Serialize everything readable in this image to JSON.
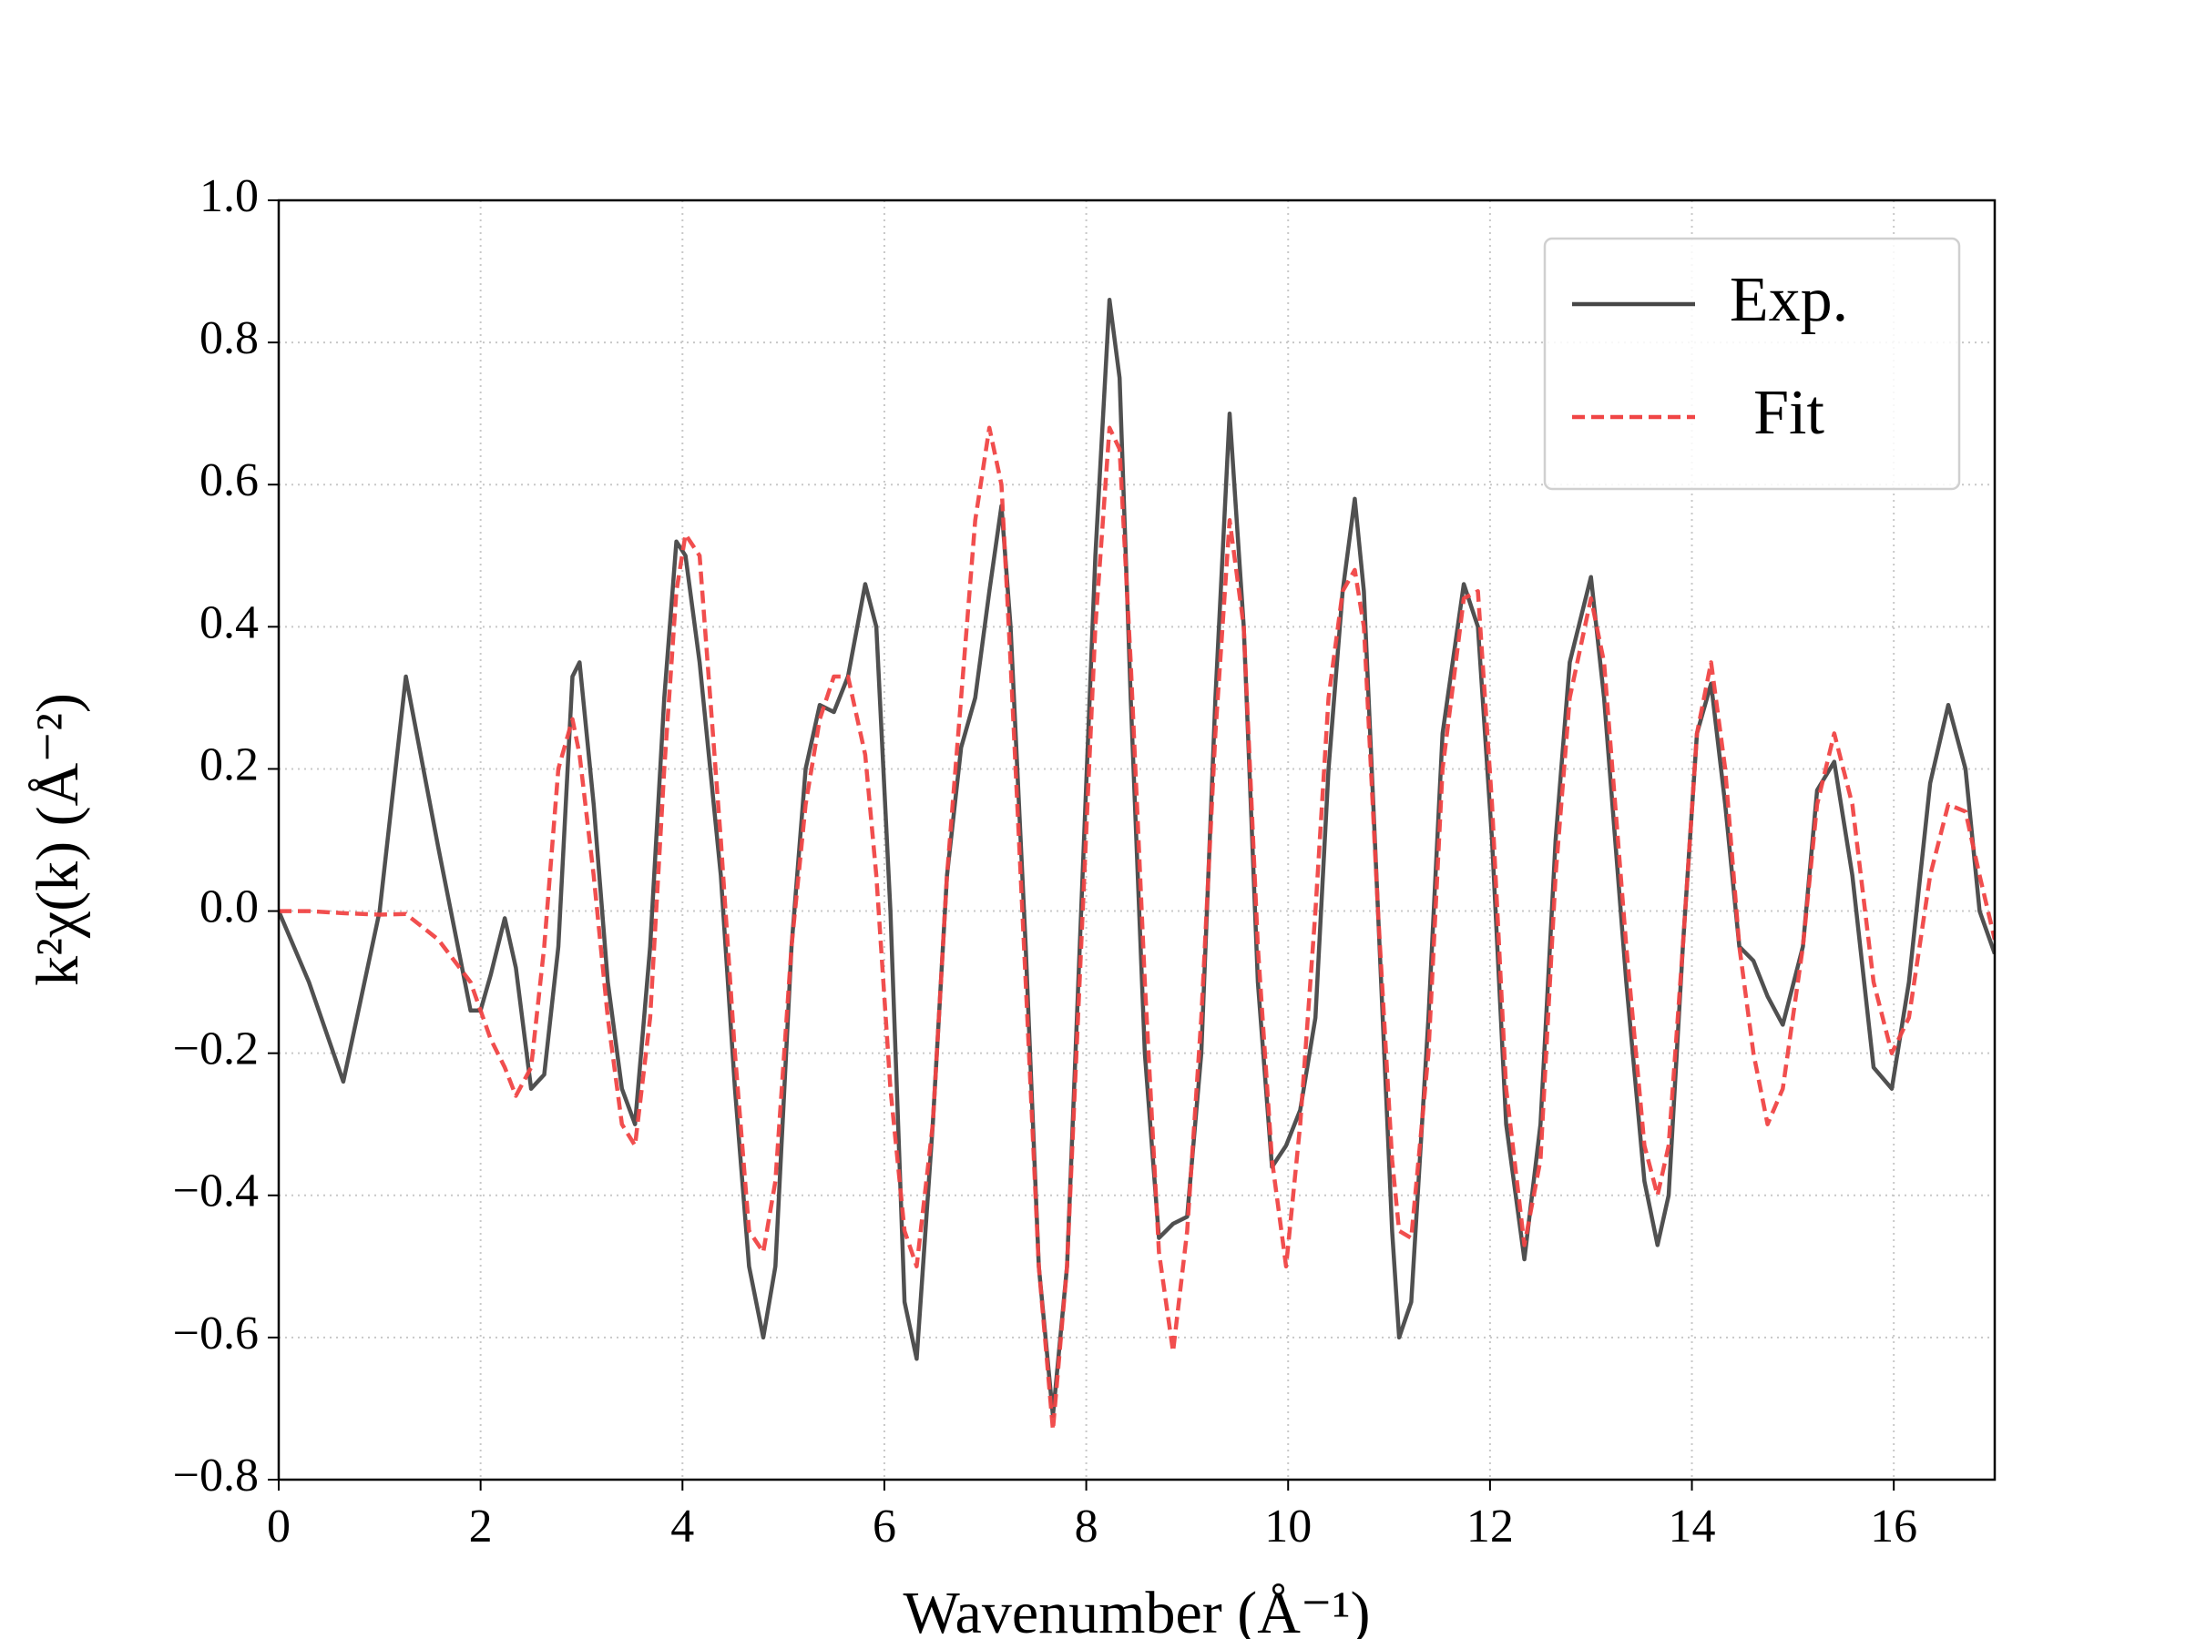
{
  "chart_data": {
    "type": "line",
    "xlabel": "Wavenumber (Å⁻¹)",
    "ylabel": "k²χ(k) (Å⁻²)",
    "xlim": [
      0,
      17
    ],
    "ylim": [
      -0.8,
      1.0
    ],
    "xticks": [
      0,
      2,
      4,
      6,
      8,
      10,
      12,
      14,
      16
    ],
    "yticks": [
      {
        "value": -0.8,
        "label": "−0.8"
      },
      {
        "value": -0.6,
        "label": "−0.6"
      },
      {
        "value": -0.4,
        "label": "−0.4"
      },
      {
        "value": -0.2,
        "label": "−0.2"
      },
      {
        "value": 0,
        "label": "0.0"
      },
      0.2,
      0.4,
      0.6,
      0.8,
      {
        "value": 1.0,
        "label": "1.0"
      }
    ],
    "grid": true,
    "legend": "upper right",
    "x": [
      0,
      0.3,
      0.64,
      1.0,
      1.26,
      1.58,
      1.9,
      2.0,
      2.1,
      2.24,
      2.35,
      2.5,
      2.63,
      2.77,
      2.91,
      2.98,
      3.12,
      3.26,
      3.4,
      3.53,
      3.68,
      3.82,
      3.94,
      4.03,
      4.17,
      4.38,
      4.52,
      4.66,
      4.8,
      4.92,
      5.08,
      5.22,
      5.36,
      5.5,
      5.64,
      5.81,
      5.92,
      6.06,
      6.2,
      6.32,
      6.48,
      6.62,
      6.76,
      6.9,
      7.04,
      7.16,
      7.25,
      7.4,
      7.53,
      7.67,
      7.81,
      7.95,
      8.09,
      8.23,
      8.33,
      8.44,
      8.58,
      8.72,
      8.86,
      9.0,
      9.14,
      9.28,
      9.42,
      9.56,
      9.7,
      9.84,
      9.98,
      10.12,
      10.27,
      10.4,
      10.54,
      10.66,
      10.75,
      10.89,
      11.03,
      11.1,
      11.22,
      11.39,
      11.53,
      11.74,
      11.88,
      12.02,
      12.16,
      12.34,
      12.5,
      12.65,
      12.79,
      13.0,
      13.13,
      13.35,
      13.53,
      13.66,
      13.77,
      13.91,
      14.05,
      14.19,
      14.33,
      14.47,
      14.61,
      14.75,
      14.9,
      15.1,
      15.24,
      15.41,
      15.59,
      15.8,
      15.98,
      16.15,
      16.36,
      16.54,
      16.71,
      16.85,
      17.0
    ],
    "series": [
      {
        "name": "Exp.",
        "color": "#474747",
        "dash": false,
        "values": [
          0,
          -0.1,
          -0.24,
          0.0,
          0.33,
          0.09,
          -0.14,
          -0.14,
          -0.09,
          -0.01,
          -0.08,
          -0.25,
          -0.23,
          -0.05,
          0.33,
          0.35,
          0.15,
          -0.1,
          -0.25,
          -0.3,
          -0.05,
          0.3,
          0.52,
          0.5,
          0.35,
          0.05,
          -0.25,
          -0.5,
          -0.6,
          -0.5,
          -0.05,
          0.2,
          0.29,
          0.28,
          0.33,
          0.46,
          0.4,
          0.0,
          -0.55,
          -0.63,
          -0.3,
          0.05,
          0.23,
          0.3,
          0.45,
          0.57,
          0.4,
          -0.05,
          -0.5,
          -0.71,
          -0.5,
          0.0,
          0.5,
          0.86,
          0.75,
          0.3,
          -0.2,
          -0.46,
          -0.44,
          -0.43,
          -0.2,
          0.3,
          0.7,
          0.4,
          -0.1,
          -0.36,
          -0.33,
          -0.28,
          -0.15,
          0.2,
          0.45,
          0.58,
          0.45,
          0.0,
          -0.45,
          -0.6,
          -0.55,
          -0.15,
          0.25,
          0.46,
          0.4,
          0.1,
          -0.3,
          -0.49,
          -0.3,
          0.1,
          0.35,
          0.47,
          0.3,
          -0.1,
          -0.38,
          -0.47,
          -0.4,
          -0.05,
          0.25,
          0.32,
          0.15,
          -0.05,
          -0.07,
          -0.12,
          -0.16,
          -0.05,
          0.17,
          0.21,
          0.05,
          -0.22,
          -0.25,
          -0.1,
          0.18,
          0.29,
          0.2,
          0.0,
          -0.06
        ]
      },
      {
        "name": "Fit",
        "color": "#f04545",
        "dash": true,
        "values": [
          0,
          0.0,
          -0.003,
          -0.005,
          -0.004,
          -0.04,
          -0.1,
          -0.14,
          -0.18,
          -0.22,
          -0.26,
          -0.22,
          -0.05,
          0.2,
          0.27,
          0.22,
          0.05,
          -0.15,
          -0.3,
          -0.33,
          -0.15,
          0.2,
          0.45,
          0.53,
          0.5,
          0.1,
          -0.2,
          -0.45,
          -0.48,
          -0.38,
          -0.05,
          0.15,
          0.27,
          0.33,
          0.33,
          0.22,
          0.05,
          -0.25,
          -0.45,
          -0.5,
          -0.3,
          0.05,
          0.3,
          0.55,
          0.68,
          0.6,
          0.35,
          -0.1,
          -0.5,
          -0.73,
          -0.5,
          -0.05,
          0.4,
          0.68,
          0.65,
          0.35,
          -0.1,
          -0.48,
          -0.62,
          -0.45,
          -0.15,
          0.25,
          0.55,
          0.4,
          -0.05,
          -0.35,
          -0.5,
          -0.3,
          0.0,
          0.3,
          0.45,
          0.48,
          0.4,
          0.0,
          -0.35,
          -0.45,
          -0.46,
          -0.2,
          0.2,
          0.44,
          0.45,
          0.15,
          -0.25,
          -0.47,
          -0.35,
          0.05,
          0.3,
          0.44,
          0.35,
          -0.05,
          -0.33,
          -0.4,
          -0.33,
          -0.05,
          0.25,
          0.35,
          0.2,
          -0.05,
          -0.2,
          -0.3,
          -0.25,
          -0.05,
          0.15,
          0.25,
          0.15,
          -0.1,
          -0.2,
          -0.15,
          0.05,
          0.15,
          0.14,
          0.05,
          -0.04
        ]
      }
    ]
  }
}
